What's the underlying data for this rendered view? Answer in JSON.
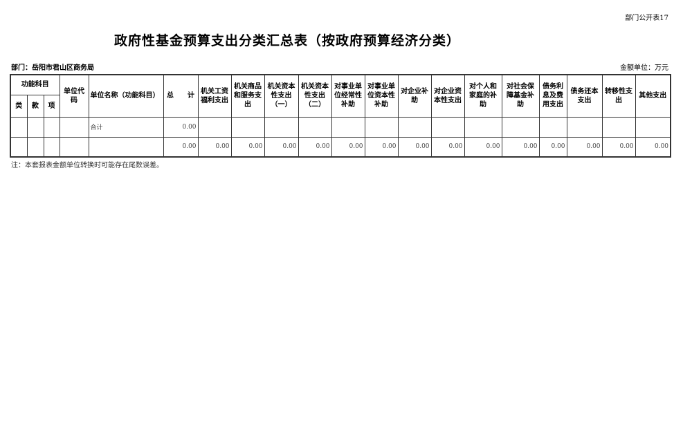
{
  "form_number": "部门公开表17",
  "title": "政府性基金预算支出分类汇总表（按政府预算经济分类）",
  "department": "部门：岳阳市君山区商务局",
  "unit": "金额单位：万元",
  "table": {
    "group_header": "功能科目",
    "sub_headers": [
      "类",
      "款",
      "项"
    ],
    "unit_code": "单位代码",
    "unit_name": "单位名称（功能科目）",
    "total": "总　　计",
    "columns": [
      "机关工资福利支出",
      "机关商品和服务支出",
      "机关资本性支出（一）",
      "机关资本性支出（二）",
      "对事业单位经常性补助",
      "对事业单位资本性补助",
      "对企业补助",
      "对企业资本性支出",
      "对个人和家庭的补助",
      "对社会保障基金补助",
      "债务利息及费用支出",
      "债务还本支出",
      "转移性支出",
      "其他支出"
    ],
    "rows": [
      {
        "name": "合计",
        "total": "0.00",
        "values": [
          "",
          "",
          "",
          "",
          "",
          "",
          "",
          "",
          "",
          "",
          "",
          "",
          "",
          ""
        ]
      },
      {
        "name": "",
        "total": "0.00",
        "values": [
          "0.00",
          "0.00",
          "0.00",
          "0.00",
          "0.00",
          "0.00",
          "0.00",
          "0.00",
          "0.00",
          "0.00",
          "0.00",
          "0.00",
          "0.00",
          "0.00"
        ]
      }
    ]
  },
  "note": "注：本套报表金额单位转换时可能存在尾数误差。"
}
